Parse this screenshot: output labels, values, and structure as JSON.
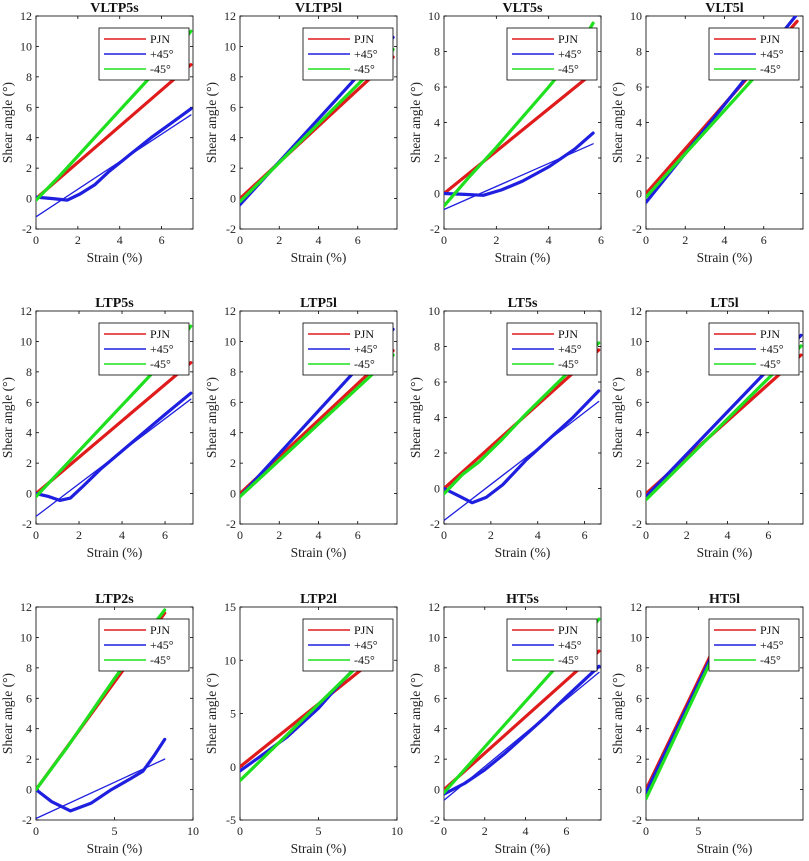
{
  "figure": {
    "xlabel": "Strain (%)",
    "ylabel": "Shear angle (°)",
    "legend_labels": [
      "PJN",
      "+45°",
      "-45°"
    ]
  },
  "colors": {
    "PJN": "#e01b1b",
    "plus45": "#1f1fe0",
    "minus45": "#1ee01e",
    "axis": "#000000"
  },
  "chart_data": [
    {
      "type": "line",
      "title": "VLTP5s",
      "xlim": [
        0,
        7.5
      ],
      "ylim": [
        -2,
        12
      ],
      "xticks": [
        0,
        2,
        4,
        6
      ],
      "yticks": [
        -2,
        0,
        2,
        4,
        6,
        8,
        10,
        12
      ],
      "series": [
        {
          "name": "PJN",
          "points": [
            [
              0,
              0
            ],
            [
              7.4,
              8.8
            ]
          ]
        },
        {
          "name": "+45°",
          "points": [
            [
              0,
              0.1
            ],
            [
              0.8,
              0
            ],
            [
              1.5,
              -0.1
            ],
            [
              2.1,
              0.3
            ],
            [
              2.8,
              0.9
            ],
            [
              3.5,
              1.8
            ],
            [
              4.5,
              2.9
            ],
            [
              5.5,
              4
            ],
            [
              6.5,
              5
            ],
            [
              7.4,
              5.9
            ]
          ]
        },
        {
          "name": "-45°",
          "points": [
            [
              0,
              -0.1
            ],
            [
              1,
              1.3
            ],
            [
              2,
              2.8
            ],
            [
              3,
              4.3
            ],
            [
              4,
              5.8
            ],
            [
              5,
              7.3
            ],
            [
              6,
              8.8
            ],
            [
              7,
              10.3
            ],
            [
              7.4,
              11
            ]
          ]
        },
        {
          "name": "+45° fit",
          "points": [
            [
              0,
              -1.2
            ],
            [
              7.4,
              5.5
            ]
          ]
        }
      ]
    },
    {
      "type": "line",
      "title": "VLTP5l",
      "xlim": [
        0,
        8
      ],
      "ylim": [
        -2,
        12
      ],
      "xticks": [
        0,
        2,
        4,
        6
      ],
      "yticks": [
        -2,
        0,
        2,
        4,
        6,
        8,
        10,
        12
      ],
      "series": [
        {
          "name": "PJN",
          "points": [
            [
              0,
              0
            ],
            [
              7.8,
              9.3
            ]
          ]
        },
        {
          "name": "+45°",
          "points": [
            [
              0,
              -0.4
            ],
            [
              7.8,
              10.6
            ]
          ]
        },
        {
          "name": "-45°",
          "points": [
            [
              0,
              -0.2
            ],
            [
              7.8,
              9.8
            ]
          ]
        }
      ]
    },
    {
      "type": "line",
      "title": "VLT5s",
      "xlim": [
        0,
        6
      ],
      "ylim": [
        -2,
        10
      ],
      "xticks": [
        0,
        2,
        4,
        6
      ],
      "yticks": [
        -2,
        0,
        2,
        4,
        6,
        8,
        10
      ],
      "series": [
        {
          "name": "PJN",
          "points": [
            [
              0,
              0
            ],
            [
              5.7,
              6.8
            ]
          ]
        },
        {
          "name": "+45°",
          "points": [
            [
              0,
              0
            ],
            [
              0.8,
              -0.05
            ],
            [
              1.5,
              -0.1
            ],
            [
              2.2,
              0.2
            ],
            [
              3,
              0.7
            ],
            [
              4,
              1.5
            ],
            [
              5,
              2.5
            ],
            [
              5.7,
              3.4
            ]
          ]
        },
        {
          "name": "-45°",
          "points": [
            [
              0,
              -0.7
            ],
            [
              1,
              1
            ],
            [
              2,
              2.6
            ],
            [
              3,
              4.3
            ],
            [
              4,
              6
            ],
            [
              5,
              7.8
            ],
            [
              5.7,
              9.6
            ]
          ]
        },
        {
          "name": "+45° fit",
          "points": [
            [
              0,
              -0.9
            ],
            [
              5.7,
              2.8
            ]
          ]
        }
      ]
    },
    {
      "type": "line",
      "title": "VLT5l",
      "xlim": [
        0,
        8
      ],
      "ylim": [
        -2,
        10
      ],
      "xticks": [
        0,
        2,
        4,
        6
      ],
      "yticks": [
        -2,
        0,
        2,
        4,
        6,
        8,
        10
      ],
      "series": [
        {
          "name": "PJN",
          "points": [
            [
              0,
              0
            ],
            [
              7.7,
              9.7
            ]
          ]
        },
        {
          "name": "+45°",
          "points": [
            [
              0,
              -0.5
            ],
            [
              7.7,
              10.1
            ]
          ]
        },
        {
          "name": "-45°",
          "points": [
            [
              0,
              -0.2
            ],
            [
              7.7,
              9.2
            ]
          ]
        }
      ]
    },
    {
      "type": "line",
      "title": "LTP5s",
      "xlim": [
        0,
        7.3
      ],
      "ylim": [
        -2,
        12
      ],
      "xticks": [
        0,
        2,
        4,
        6
      ],
      "yticks": [
        -2,
        0,
        2,
        4,
        6,
        8,
        10,
        12
      ],
      "series": [
        {
          "name": "PJN",
          "points": [
            [
              0,
              0
            ],
            [
              7.2,
              8.6
            ]
          ]
        },
        {
          "name": "+45°",
          "points": [
            [
              0,
              0
            ],
            [
              0.6,
              -0.2
            ],
            [
              1.1,
              -0.45
            ],
            [
              1.6,
              -0.3
            ],
            [
              2.2,
              0.5
            ],
            [
              3,
              1.6
            ],
            [
              4,
              2.8
            ],
            [
              5,
              4
            ],
            [
              6,
              5.2
            ],
            [
              7.2,
              6.6
            ]
          ]
        },
        {
          "name": "-45°",
          "points": [
            [
              0,
              -0.2
            ],
            [
              1,
              1.3
            ],
            [
              2,
              2.8
            ],
            [
              3,
              4.3
            ],
            [
              4,
              5.8
            ],
            [
              5,
              7.3
            ],
            [
              6,
              8.8
            ],
            [
              7.2,
              11
            ]
          ]
        },
        {
          "name": "+45° fit",
          "points": [
            [
              0,
              -1.5
            ],
            [
              7.2,
              6.2
            ]
          ]
        }
      ]
    },
    {
      "type": "line",
      "title": "LTP5l",
      "xlim": [
        0,
        8
      ],
      "ylim": [
        -2,
        12
      ],
      "xticks": [
        0,
        2,
        4,
        6
      ],
      "yticks": [
        -2,
        0,
        2,
        4,
        6,
        8,
        10,
        12
      ],
      "series": [
        {
          "name": "PJN",
          "points": [
            [
              0,
              0
            ],
            [
              7.8,
              9.4
            ]
          ]
        },
        {
          "name": "+45°",
          "points": [
            [
              0,
              -0.2
            ],
            [
              7.8,
              10.8
            ]
          ]
        },
        {
          "name": "-45°",
          "points": [
            [
              0,
              -0.2
            ],
            [
              7.8,
              9.1
            ]
          ]
        }
      ]
    },
    {
      "type": "line",
      "title": "LT5s",
      "xlim": [
        0,
        6.7
      ],
      "ylim": [
        -2,
        10
      ],
      "xticks": [
        0,
        2,
        4,
        6
      ],
      "yticks": [
        -2,
        0,
        2,
        4,
        6,
        8,
        10
      ],
      "series": [
        {
          "name": "PJN",
          "points": [
            [
              0,
              0
            ],
            [
              6.6,
              7.8
            ]
          ]
        },
        {
          "name": "+45°",
          "points": [
            [
              0,
              0
            ],
            [
              0.6,
              -0.4
            ],
            [
              1.2,
              -0.8
            ],
            [
              1.8,
              -0.5
            ],
            [
              2.5,
              0.2
            ],
            [
              3.5,
              1.6
            ],
            [
              4.5,
              2.8
            ],
            [
              5.5,
              4
            ],
            [
              6.6,
              5.5
            ]
          ]
        },
        {
          "name": "-45°",
          "points": [
            [
              0,
              -0.3
            ],
            [
              0.8,
              0.8
            ],
            [
              1.5,
              1.5
            ],
            [
              2.5,
              2.8
            ],
            [
              3.5,
              4.2
            ],
            [
              4.5,
              5.5
            ],
            [
              5.5,
              6.8
            ],
            [
              6.6,
              8.2
            ]
          ]
        },
        {
          "name": "+45° fit",
          "points": [
            [
              0,
              -1.8
            ],
            [
              6.6,
              4.9
            ]
          ]
        }
      ]
    },
    {
      "type": "line",
      "title": "LT5l",
      "xlim": [
        0,
        7.7
      ],
      "ylim": [
        -2,
        12
      ],
      "xticks": [
        0,
        2,
        4,
        6
      ],
      "yticks": [
        -2,
        0,
        2,
        4,
        6,
        8,
        10,
        12
      ],
      "series": [
        {
          "name": "PJN",
          "points": [
            [
              0,
              0
            ],
            [
              7.6,
              9.1
            ]
          ]
        },
        {
          "name": "+45°",
          "points": [
            [
              0,
              -0.2
            ],
            [
              7.6,
              10.4
            ]
          ]
        },
        {
          "name": "-45°",
          "points": [
            [
              0,
              -0.4
            ],
            [
              7.6,
              9.7
            ]
          ]
        }
      ]
    },
    {
      "type": "line",
      "title": "LTP2s",
      "xlim": [
        0,
        10
      ],
      "ylim": [
        -2,
        12
      ],
      "xticks": [
        0,
        5,
        10
      ],
      "yticks": [
        -2,
        0,
        2,
        4,
        6,
        8,
        10,
        12
      ],
      "series": [
        {
          "name": "PJN",
          "points": [
            [
              0,
              0
            ],
            [
              8.2,
              11.6
            ]
          ]
        },
        {
          "name": "+45°",
          "points": [
            [
              0,
              0
            ],
            [
              1,
              -0.8
            ],
            [
              2.2,
              -1.4
            ],
            [
              3.5,
              -0.9
            ],
            [
              4.8,
              0
            ],
            [
              6,
              0.7
            ],
            [
              6.8,
              1.2
            ],
            [
              7.5,
              2.2
            ],
            [
              8.2,
              3.3
            ]
          ]
        },
        {
          "name": "-45°",
          "points": [
            [
              0,
              0
            ],
            [
              1,
              1.4
            ],
            [
              2,
              2.8
            ],
            [
              3,
              4.3
            ],
            [
              4,
              5.8
            ],
            [
              5,
              7.3
            ],
            [
              6,
              8.7
            ],
            [
              7,
              10.2
            ],
            [
              8.2,
              11.8
            ]
          ]
        },
        {
          "name": "+45° fit",
          "points": [
            [
              0,
              -1.9
            ],
            [
              8.2,
              2
            ]
          ]
        }
      ]
    },
    {
      "type": "line",
      "title": "LTP2l",
      "xlim": [
        0,
        10
      ],
      "ylim": [
        -5,
        15
      ],
      "xticks": [
        0,
        5,
        10
      ],
      "yticks": [
        -5,
        0,
        5,
        10,
        15
      ],
      "series": [
        {
          "name": "PJN",
          "points": [
            [
              0,
              0
            ],
            [
              7.8,
              9.2
            ]
          ]
        },
        {
          "name": "+45°",
          "points": [
            [
              0,
              -0.4
            ],
            [
              1.5,
              1.2
            ],
            [
              3,
              2.8
            ],
            [
              5,
              5.5
            ],
            [
              6.5,
              8
            ],
            [
              7.8,
              10
            ]
          ]
        },
        {
          "name": "-45°",
          "points": [
            [
              0,
              -1.3
            ],
            [
              7.8,
              9.9
            ]
          ]
        }
      ]
    },
    {
      "type": "line",
      "title": "HT5s",
      "xlim": [
        0,
        7.7
      ],
      "ylim": [
        -2,
        12
      ],
      "xticks": [
        0,
        2,
        4,
        6
      ],
      "yticks": [
        -2,
        0,
        2,
        4,
        6,
        8,
        10,
        12
      ],
      "series": [
        {
          "name": "PJN",
          "points": [
            [
              0,
              0
            ],
            [
              7.6,
              9.1
            ]
          ]
        },
        {
          "name": "+45°",
          "points": [
            [
              0,
              -0.3
            ],
            [
              1,
              0.4
            ],
            [
              2,
              1.3
            ],
            [
              3,
              2.4
            ],
            [
              4,
              3.6
            ],
            [
              5,
              4.8
            ],
            [
              6,
              6.1
            ],
            [
              7.6,
              8.1
            ]
          ]
        },
        {
          "name": "-45°",
          "points": [
            [
              0,
              -0.2
            ],
            [
              7.6,
              11.2
            ]
          ]
        },
        {
          "name": "+45° fit",
          "points": [
            [
              0,
              -0.7
            ],
            [
              7.6,
              7.7
            ]
          ]
        }
      ]
    },
    {
      "type": "line",
      "title": "HT5l",
      "xlim": [
        0,
        15
      ],
      "ylim": [
        -2,
        12
      ],
      "xticks": [
        0,
        5
      ],
      "yticks": [
        -2,
        0,
        2,
        4,
        6,
        8,
        10,
        12
      ],
      "series": [
        {
          "name": "PJN",
          "points": [
            [
              0,
              0
            ],
            [
              6.5,
              9.3
            ]
          ]
        },
        {
          "name": "+45°",
          "points": [
            [
              0,
              -0.2
            ],
            [
              6.5,
              9.1
            ]
          ]
        },
        {
          "name": "-45°",
          "points": [
            [
              0,
              -0.6
            ],
            [
              6.5,
              8.9
            ]
          ]
        }
      ]
    }
  ]
}
